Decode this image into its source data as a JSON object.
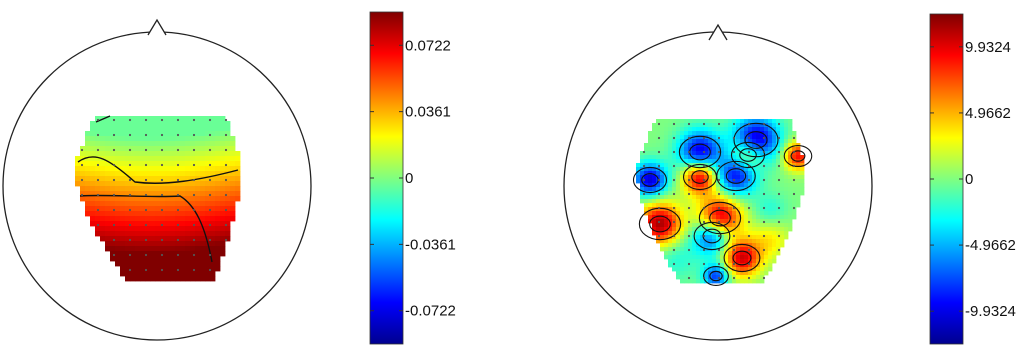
{
  "chart_data": [
    {
      "type": "heatmap",
      "subtype": "scalp-topography",
      "title": "",
      "colormap": "jet",
      "color_range": [
        -0.0903,
        0.0903
      ],
      "colorbar_ticks": [
        {
          "value": 0.0722,
          "label": "0.0722"
        },
        {
          "value": 0.0361,
          "label": "0.0361"
        },
        {
          "value": 0,
          "label": "0"
        },
        {
          "value": -0.0361,
          "label": "-0.0361"
        },
        {
          "value": -0.0722,
          "label": "-0.0722"
        }
      ],
      "pattern": "smooth-gradient",
      "contour_levels": [
        0.045,
        0.068
      ]
    },
    {
      "type": "heatmap",
      "subtype": "scalp-topography",
      "title": "",
      "colormap": "jet",
      "color_range": [
        -12.4,
        12.4
      ],
      "colorbar_ticks": [
        {
          "value": 9.9324,
          "label": "9.9324"
        },
        {
          "value": 4.9662,
          "label": "4.9662"
        },
        {
          "value": 0,
          "label": "0"
        },
        {
          "value": -4.9662,
          "label": "-4.9662"
        },
        {
          "value": -9.9324,
          "label": "-9.9324"
        }
      ],
      "pattern": "patchy",
      "contour_levels": [
        -7,
        -3.5,
        3.5,
        7
      ]
    }
  ]
}
